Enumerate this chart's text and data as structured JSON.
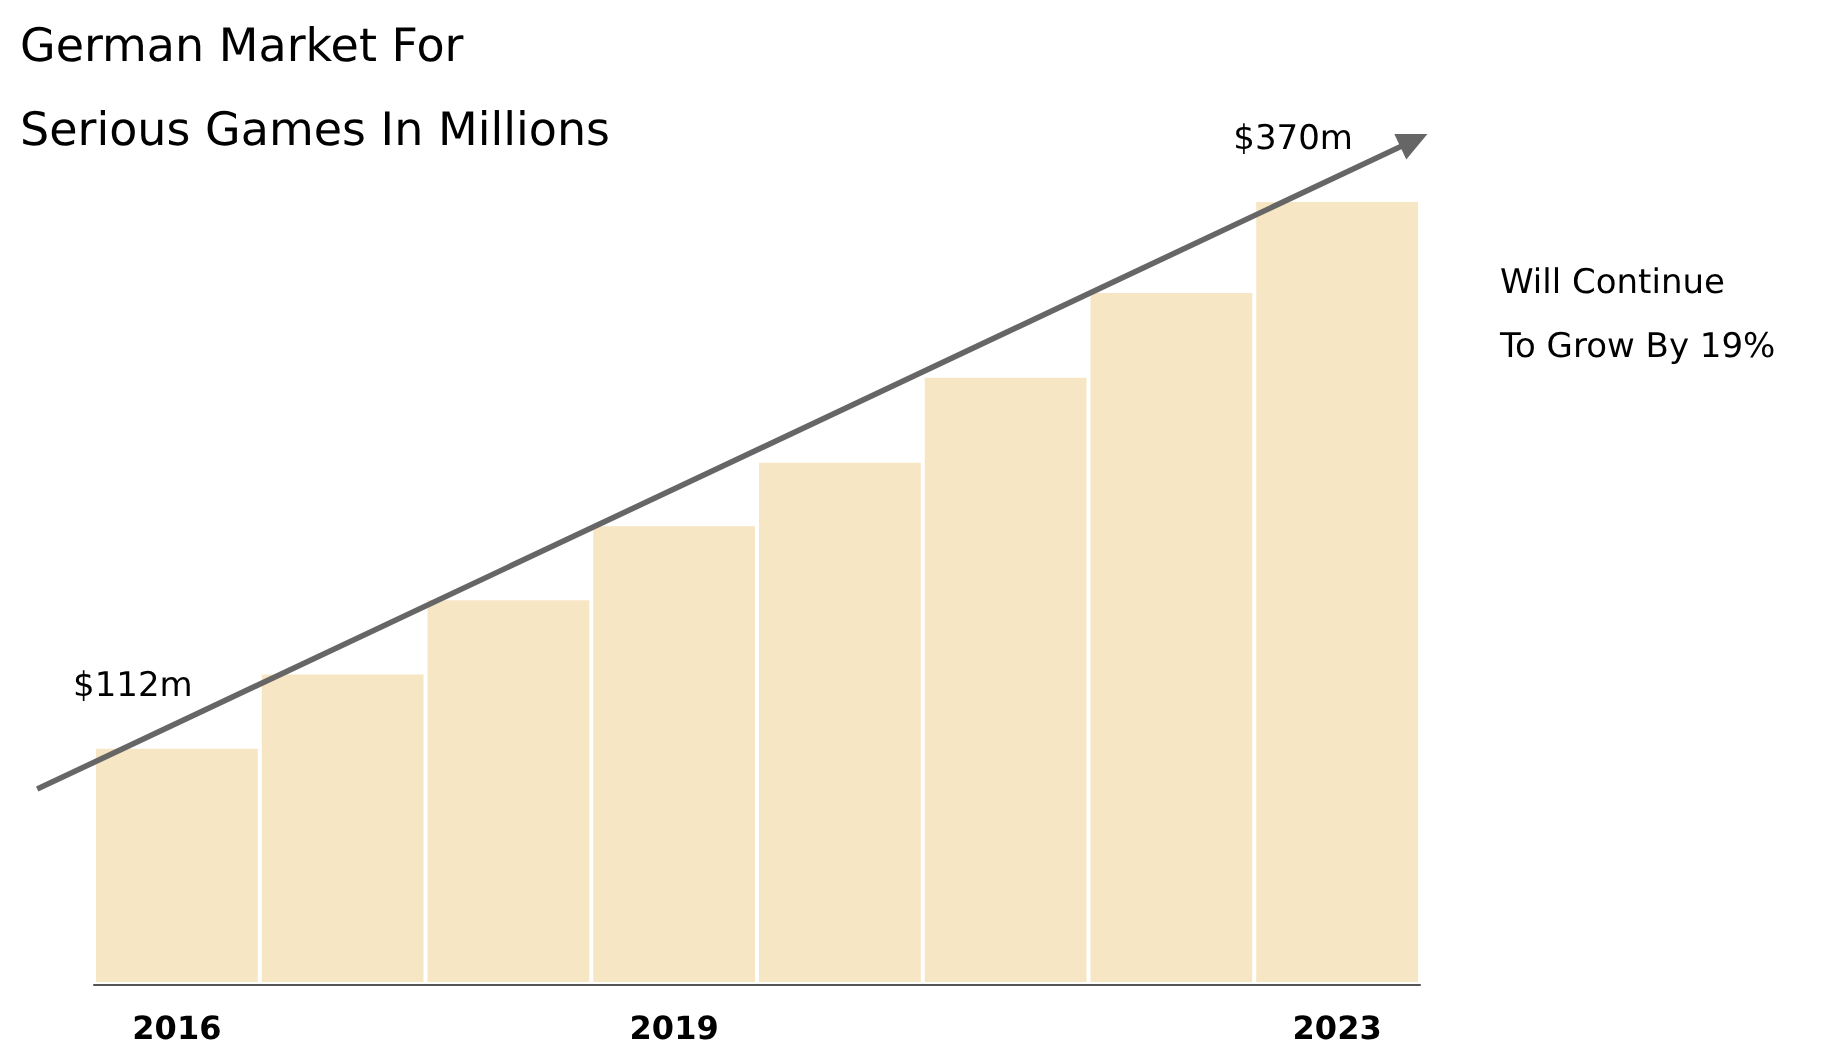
{
  "chart_data": {
    "type": "bar",
    "title": "German Market For\nSerious Games In Millions",
    "categories": [
      "2016",
      null,
      null,
      "2019",
      null,
      null,
      null,
      "2023"
    ],
    "values": [
      112,
      147,
      182,
      217,
      247,
      287,
      327,
      370
    ],
    "value_labels": [
      "$112m",
      null,
      null,
      null,
      null,
      null,
      null,
      "$370m"
    ],
    "color": "#f7e6c4",
    "tick_labels": "x",
    "annotations": [
      "Will Continue\nTo Grow By 19%"
    ]
  }
}
